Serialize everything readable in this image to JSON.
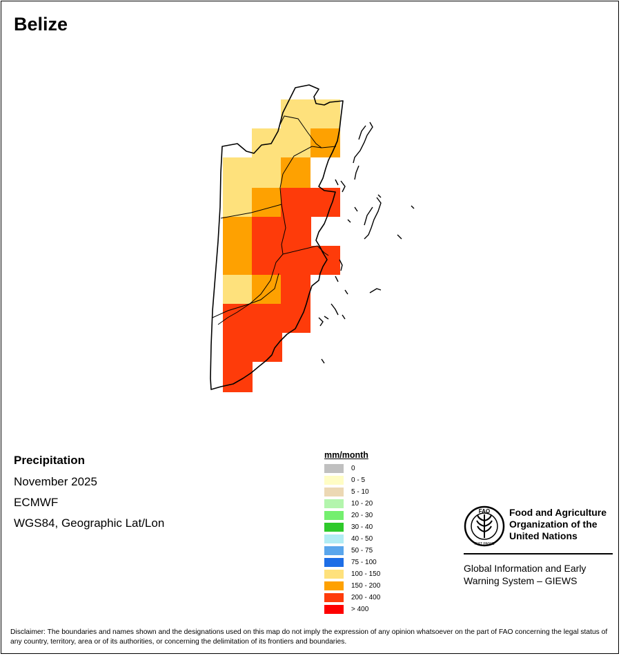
{
  "map": {
    "title": "Belize",
    "variable": "Precipitation",
    "period": "November 2025",
    "model": "ECMWF",
    "projection": "WGS84, Geographic Lat/Lon"
  },
  "legend": {
    "unit": "mm/month",
    "classes": [
      {
        "label": "0",
        "color": "#c0c0c0"
      },
      {
        "label": "0 - 5",
        "color": "#fffdc5"
      },
      {
        "label": "5 - 10",
        "color": "#ecd8b4"
      },
      {
        "label": "10 - 20",
        "color": "#b3f5ad"
      },
      {
        "label": "20 - 30",
        "color": "#74ef6f"
      },
      {
        "label": "30 - 40",
        "color": "#2ec92b"
      },
      {
        "label": "40 - 50",
        "color": "#b1ecf4"
      },
      {
        "label": "50 - 75",
        "color": "#5aa6ec"
      },
      {
        "label": "75 - 100",
        "color": "#1e6ee6"
      },
      {
        "label": "100 - 150",
        "color": "#fee17c"
      },
      {
        "label": "150 - 200",
        "color": "#fea101"
      },
      {
        "label": "200 - 400",
        "color": "#fe3b0a"
      },
      {
        "label": "> 400",
        "color": "#fe0000"
      }
    ]
  },
  "org": {
    "name_lines": [
      "Food and Agriculture",
      "Organization of the",
      "United Nations"
    ],
    "logo_letters": "FAO",
    "logo_motto": "FIAT PANIS",
    "system_lines": [
      "Global Information and Early",
      "Warning System – GIEWS"
    ]
  },
  "disclaimer": "Disclaimer: The boundaries and names shown and the designations used on this map do not imply the expression of any opinion whatsoever on the part of FAO concerning the legal status of any country, territory, area or of its authorities, or concerning the delimitation of its frontiers and boundaries."
}
